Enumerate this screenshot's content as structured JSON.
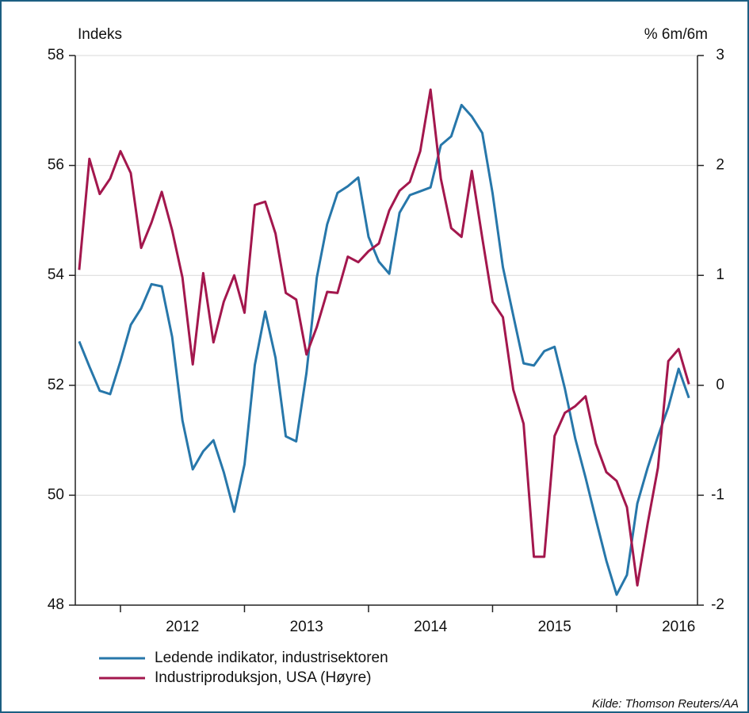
{
  "chart_data": {
    "type": "line",
    "y_label": "Indeks",
    "y2_label": "% 6m/6m",
    "source": "Kilde: Thomson Reuters/AA",
    "x": [
      2011.667,
      2011.75,
      2011.833,
      2011.917,
      2012,
      2012.083,
      2012.167,
      2012.25,
      2012.333,
      2012.417,
      2012.5,
      2012.583,
      2012.667,
      2012.75,
      2012.833,
      2012.917,
      2013,
      2013.083,
      2013.167,
      2013.25,
      2013.333,
      2013.417,
      2013.5,
      2013.583,
      2013.667,
      2013.75,
      2013.833,
      2013.917,
      2014,
      2014.083,
      2014.167,
      2014.25,
      2014.333,
      2014.417,
      2014.5,
      2014.583,
      2014.667,
      2014.75,
      2014.833,
      2014.917,
      2015,
      2015.083,
      2015.167,
      2015.25,
      2015.333,
      2015.417,
      2015.5,
      2015.583,
      2015.667,
      2015.75,
      2015.833,
      2015.917,
      2016,
      2016.083,
      2016.167,
      2016.25,
      2016.333,
      2016.417,
      2016.5,
      2016.583
    ],
    "series": [
      {
        "name": "Ledende indikator, industrisektoren",
        "color": "#2777aa",
        "values": [
          52.8,
          52.34,
          51.9,
          51.84,
          52.44,
          53.1,
          53.4,
          53.84,
          53.8,
          52.88,
          51.36,
          50.47,
          50.8,
          51.0,
          50.42,
          49.7,
          50.56,
          52.37,
          53.34,
          52.5,
          51.07,
          50.98,
          52.23,
          53.96,
          54.93,
          55.5,
          55.62,
          55.78,
          54.7,
          54.25,
          54.03,
          55.14,
          55.46,
          55.53,
          55.6,
          56.37,
          56.53,
          57.1,
          56.89,
          56.59,
          55.49,
          54.15,
          53.27,
          52.4,
          52.36,
          52.62,
          52.7,
          51.94,
          51.03,
          50.32,
          49.56,
          48.81,
          48.19,
          48.55,
          49.85,
          50.5,
          51.07,
          51.6,
          52.3,
          51.77
        ]
      },
      {
        "name": "Industriproduksjon, USA (Høyre)",
        "color": "#a3174d",
        "axis": "y2",
        "values": [
          1.05,
          2.06,
          1.74,
          1.88,
          2.13,
          1.93,
          1.25,
          1.48,
          1.76,
          1.41,
          0.98,
          0.19,
          1.02,
          0.39,
          0.76,
          1.0,
          0.66,
          1.64,
          1.67,
          1.38,
          0.84,
          0.78,
          0.28,
          0.53,
          0.85,
          0.84,
          1.17,
          1.12,
          1.22,
          1.29,
          1.59,
          1.77,
          1.85,
          2.13,
          2.69,
          1.88,
          1.43,
          1.35,
          1.95,
          1.34,
          0.76,
          0.62,
          -0.04,
          -0.35,
          -1.56,
          -1.56,
          -0.46,
          -0.25,
          -0.19,
          -0.1,
          -0.53,
          -0.79,
          -0.87,
          -1.11,
          -1.82,
          -1.26,
          -0.75,
          0.22,
          0.33,
          0.01
        ]
      }
    ],
    "xlim": [
      2011.636,
      2016.652
    ],
    "xticks": [
      {
        "value": 2012.5,
        "label": "2012"
      },
      {
        "value": 2013.5,
        "label": "2013"
      },
      {
        "value": 2014.5,
        "label": "2014"
      },
      {
        "value": 2015.5,
        "label": "2015"
      },
      {
        "value": 2016.5,
        "label": "2016"
      }
    ],
    "xtick_marks": [
      2012,
      2013,
      2014,
      2015,
      2016
    ],
    "ylim": [
      48,
      58
    ],
    "yticks": [
      48,
      50,
      52,
      54,
      56,
      58
    ],
    "y2lim": [
      -2,
      3
    ],
    "y2ticks": [
      -2,
      -1,
      0,
      1,
      2,
      3
    ],
    "grid": true
  }
}
